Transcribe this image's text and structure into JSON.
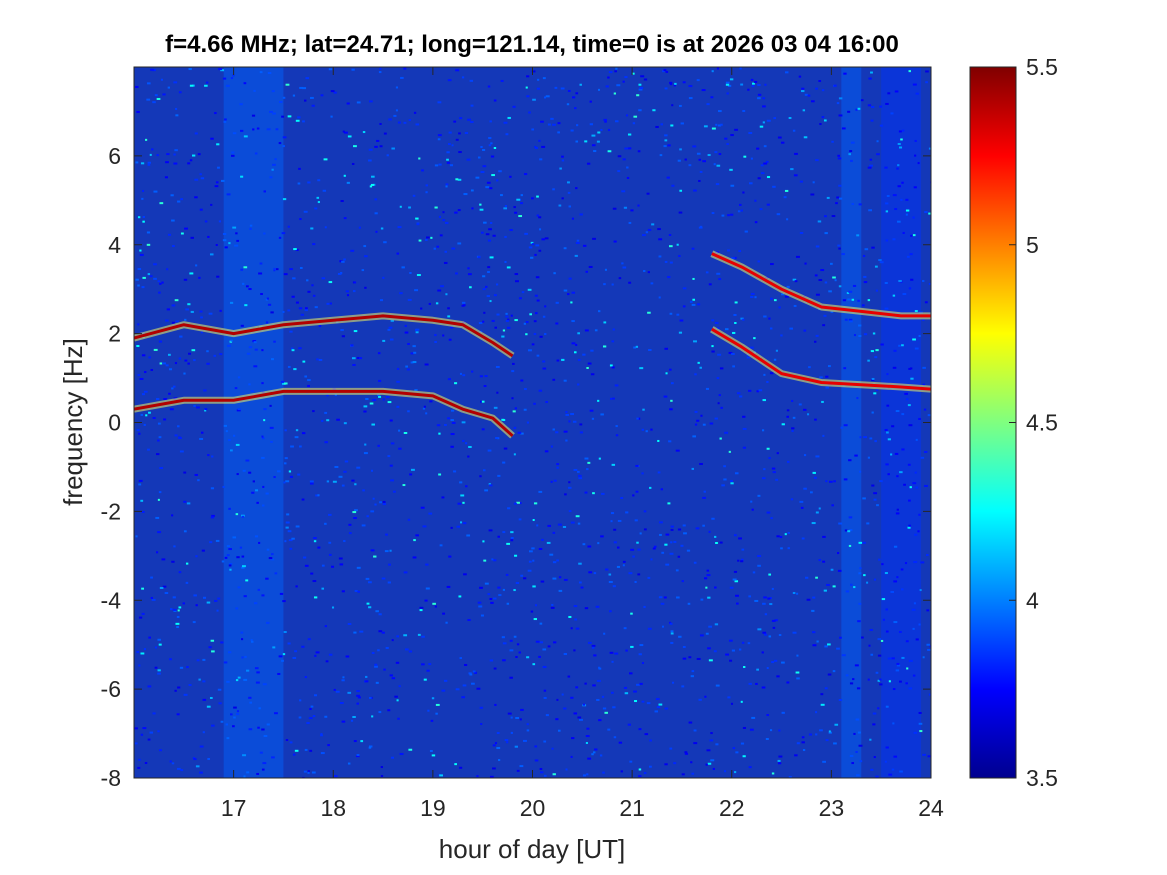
{
  "chart_data": {
    "type": "heatmap",
    "title": "f=4.66 MHz;  lat=24.71; long=121.14, time=0 is at 2026 03 04 16:00",
    "xlabel": "hour of day [UT]",
    "ylabel": "frequency [Hz]",
    "xlim": [
      16,
      24
    ],
    "ylim": [
      -8,
      8
    ],
    "x_ticks": [
      "17",
      "18",
      "19",
      "20",
      "21",
      "22",
      "23",
      "24"
    ],
    "y_ticks": [
      "-8",
      "-6",
      "-4",
      "-2",
      "0",
      "2",
      "4",
      "6"
    ],
    "colorbar": {
      "colormap": "jet",
      "range": [
        3.5,
        5.5
      ],
      "ticks": [
        "3.5",
        "4",
        "4.5",
        "5",
        "5.5"
      ]
    },
    "background_level": 3.7,
    "traces": [
      {
        "x": [
          16.0,
          16.5,
          17.0,
          17.5,
          18.0,
          18.5,
          19.0,
          19.3,
          19.6,
          19.8
        ],
        "y": [
          1.9,
          2.2,
          2.0,
          2.2,
          2.3,
          2.4,
          2.3,
          2.2,
          1.8,
          1.5
        ],
        "level": 5.4
      },
      {
        "x": [
          16.0,
          16.5,
          17.0,
          17.5,
          18.0,
          18.5,
          19.0,
          19.3,
          19.6,
          19.8
        ],
        "y": [
          0.3,
          0.5,
          0.5,
          0.7,
          0.7,
          0.7,
          0.6,
          0.3,
          0.1,
          -0.3
        ],
        "level": 5.4
      },
      {
        "x": [
          21.8,
          22.1,
          22.5,
          22.9,
          23.3,
          23.7,
          24.0
        ],
        "y": [
          3.8,
          3.5,
          3.0,
          2.6,
          2.5,
          2.4,
          2.4
        ],
        "level": 5.3
      },
      {
        "x": [
          21.8,
          22.1,
          22.5,
          22.9,
          23.3,
          23.7,
          24.0
        ],
        "y": [
          2.1,
          1.7,
          1.1,
          0.9,
          0.85,
          0.8,
          0.75
        ],
        "level": 5.3
      }
    ],
    "vertical_bands": [
      {
        "x": [
          16.9,
          17.5
        ],
        "level": 3.95
      },
      {
        "x": [
          23.1,
          23.3
        ],
        "level": 3.95
      },
      {
        "x": [
          23.5,
          23.9
        ],
        "level": 3.85
      }
    ]
  }
}
